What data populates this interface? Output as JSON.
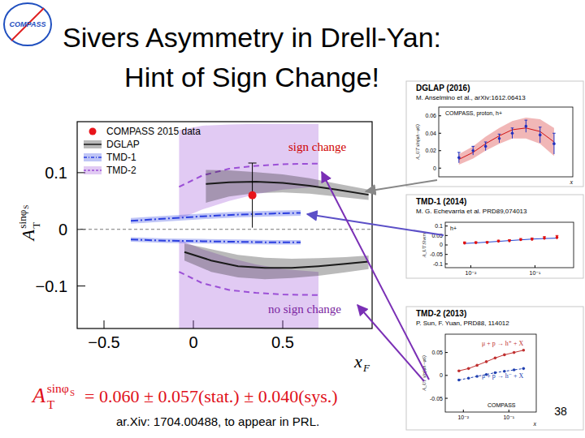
{
  "slide": {
    "logo": "COMPASS",
    "title": [
      "Sivers Asymmetry in Drell-Yan:",
      "Hint of Sign Change!"
    ],
    "result": {
      "lhs": [
        "A",
        "T",
        "sinφ",
        "S"
      ],
      "rhs": "= 0.060 ± 0.057(stat.) ± 0.040(sys.)"
    },
    "footnote": "ar.Xiv: 1704.00488, to appear in PRL.",
    "page": "38"
  },
  "chart_data": [
    {
      "type": "line",
      "xlabel": [
        "x",
        "F"
      ],
      "ylabel": [
        "A",
        "T",
        "sinφ",
        "S"
      ],
      "xlim": [
        -0.65,
        1.0
      ],
      "ylim": [
        -0.175,
        0.19
      ],
      "xticks": [
        {
          "value": -0.5,
          "label": "−0.5"
        },
        0,
        0.5
      ],
      "yticks": [
        {
          "value": -0.1,
          "label": "−0.1"
        },
        0,
        0.1
      ],
      "reference_y": 0,
      "legend": "upper left",
      "annotations": [
        {
          "text": "sign change",
          "color": "#d00000"
        },
        {
          "text": "no sign change",
          "color": "#7a1fa0"
        }
      ],
      "series": [
        {
          "name": "COMPASS 2015 data",
          "type": "scatter",
          "marker": "circle",
          "color": "#e8141b",
          "x": [
            0.33
          ],
          "values": [
            0.06
          ],
          "error": [
            0.057
          ]
        },
        {
          "name": "DGLAP",
          "type": "band",
          "color": "#1a1a1a",
          "line_style": "solid",
          "x": [
            0.07,
            0.2,
            0.35,
            0.5,
            0.65,
            0.8,
            0.98
          ],
          "values": [
            0.08,
            0.083,
            0.084,
            0.082,
            0.077,
            0.07,
            0.061
          ],
          "upper": [
            0.105,
            0.104,
            0.101,
            0.097,
            0.09,
            0.081,
            0.07
          ],
          "lower": [
            0.047,
            0.058,
            0.064,
            0.065,
            0.063,
            0.058,
            0.052
          ]
        },
        {
          "type": "band",
          "color": "#1a1a1a",
          "line_style": "solid",
          "x": [
            -0.05,
            0.1,
            0.25,
            0.4,
            0.55,
            0.7,
            0.85,
            0.98
          ],
          "values": [
            -0.04,
            -0.055,
            -0.065,
            -0.068,
            -0.068,
            -0.065,
            -0.061,
            -0.057
          ],
          "upper": [
            -0.025,
            -0.035,
            -0.045,
            -0.05,
            -0.052,
            -0.051,
            -0.049,
            -0.046
          ],
          "lower": [
            -0.055,
            -0.075,
            -0.085,
            -0.088,
            -0.086,
            -0.082,
            -0.076,
            -0.07
          ]
        },
        {
          "name": "TMD-1",
          "type": "band",
          "color": "#2b3fe0",
          "line_style": "dashdot",
          "x": [
            -0.35,
            -0.15,
            0.05,
            0.25,
            0.45,
            0.6
          ],
          "values": [
            0.015,
            0.019,
            0.023,
            0.026,
            0.028,
            0.029
          ],
          "upper": [
            0.02,
            0.024,
            0.028,
            0.031,
            0.033,
            0.034
          ],
          "lower": [
            0.01,
            0.014,
            0.018,
            0.021,
            0.023,
            0.024
          ]
        },
        {
          "type": "band",
          "color": "#2b3fe0",
          "line_style": "dashdot",
          "x": [
            -0.35,
            -0.15,
            0.05,
            0.25,
            0.45,
            0.6
          ],
          "values": [
            -0.018,
            -0.02,
            -0.021,
            -0.022,
            -0.023,
            -0.023
          ],
          "upper": [
            -0.014,
            -0.016,
            -0.017,
            -0.018,
            -0.019,
            -0.019
          ],
          "lower": [
            -0.022,
            -0.024,
            -0.025,
            -0.026,
            -0.027,
            -0.027
          ]
        },
        {
          "name": "TMD-2",
          "type": "band",
          "color": "#9b4fd6",
          "line_style": "dashed",
          "x": [
            -0.08,
            0.05,
            0.2,
            0.35,
            0.5,
            0.7
          ],
          "values": [
            0.075,
            0.095,
            0.107,
            0.112,
            0.115,
            0.116
          ],
          "upper": [
            0.175,
            0.183,
            0.185,
            0.186,
            0.186,
            0.186
          ],
          "lower": [
            0.018,
            0.035,
            0.05,
            0.062,
            0.07,
            0.075
          ]
        },
        {
          "type": "band",
          "color": "#9b4fd6",
          "line_style": "dashed",
          "x": [
            -0.08,
            0.05,
            0.2,
            0.35,
            0.5,
            0.7
          ],
          "values": [
            -0.075,
            -0.095,
            -0.107,
            -0.112,
            -0.115,
            -0.116
          ],
          "upper": [
            -0.018,
            -0.035,
            -0.05,
            -0.062,
            -0.07,
            -0.075
          ],
          "lower": [
            -0.175,
            -0.183,
            -0.185,
            -0.186,
            -0.186,
            -0.186
          ]
        }
      ]
    },
    {
      "type": "line",
      "title": "DGLAP (2016)",
      "subtitle": "M. Anselmino et al., arXiv:1612.06413",
      "xlabel": "x",
      "ylabel": "A_UT sin(φh−φS)",
      "log": "x",
      "xlim": [
        0.004,
        0.4
      ],
      "ylim": [
        -0.01,
        0.07
      ],
      "yticks": [
        0,
        0.02,
        0.04,
        0.06
      ],
      "tick_labels": "y",
      "annotations": [
        {
          "text": "COMPASS, proton, h+"
        }
      ],
      "series": [
        {
          "type": "band",
          "color": "#d01010",
          "line_style": "solid",
          "x": [
            0.008,
            0.013,
            0.02,
            0.032,
            0.05,
            0.08,
            0.13,
            0.21
          ],
          "values": [
            0.01,
            0.018,
            0.028,
            0.037,
            0.044,
            0.046,
            0.042,
            0.03
          ],
          "upper": [
            0.016,
            0.025,
            0.036,
            0.046,
            0.054,
            0.058,
            0.056,
            0.046
          ],
          "lower": [
            0.004,
            0.011,
            0.02,
            0.028,
            0.034,
            0.034,
            0.028,
            0.014
          ]
        },
        {
          "type": "scatter",
          "marker": "circle",
          "color": "#2030c0",
          "x": [
            0.008,
            0.013,
            0.02,
            0.032,
            0.05,
            0.08,
            0.13,
            0.21
          ],
          "values": [
            0.012,
            0.02,
            0.025,
            0.034,
            0.04,
            0.048,
            0.038,
            0.028
          ],
          "error": [
            0.006,
            0.005,
            0.005,
            0.005,
            0.006,
            0.007,
            0.009,
            0.012
          ]
        }
      ]
    },
    {
      "type": "line",
      "title": "TMD-1 (2014)",
      "subtitle": "M. G. Echevarria et al. PRD89,074013",
      "ylabel": "A_UT Sivers",
      "log": "x",
      "xlim": [
        0.004,
        0.4
      ],
      "ylim": [
        -0.12,
        0.12
      ],
      "xticks": [
        {
          "value": 0.01,
          "label": "10⁻²"
        },
        {
          "value": 0.1,
          "label": "10⁻¹"
        }
      ],
      "yticks": [
        -0.1,
        -0.05,
        0,
        0.05,
        0.1
      ],
      "annotations": [
        {
          "text": "h+"
        }
      ],
      "series": [
        {
          "type": "line",
          "color": "#2040d0",
          "line_style": "solid",
          "x": [
            0.008,
            0.012,
            0.018,
            0.027,
            0.04,
            0.06,
            0.09,
            0.14,
            0.22
          ],
          "values": [
            0.008,
            0.011,
            0.015,
            0.019,
            0.023,
            0.027,
            0.031,
            0.034,
            0.036
          ]
        },
        {
          "type": "scatter",
          "marker": "circle",
          "color": "#e01010",
          "x": [
            0.008,
            0.012,
            0.018,
            0.027,
            0.04,
            0.06,
            0.09,
            0.14,
            0.22
          ],
          "values": [
            0.01,
            0.012,
            0.013,
            0.02,
            0.022,
            0.028,
            0.03,
            0.036,
            0.04
          ],
          "error": [
            0.006,
            0.005,
            0.005,
            0.005,
            0.006,
            0.006,
            0.007,
            0.008,
            0.01
          ]
        }
      ]
    },
    {
      "type": "line",
      "title": "TMD-2 (2013)",
      "subtitle": "P. Sun, F. Yuan, PRD88, 114012",
      "xlabel": "x",
      "ylabel": "A_UT sin(φh−φS)",
      "log": "x",
      "xlim": [
        0.004,
        0.4
      ],
      "ylim": [
        -0.08,
        0.09
      ],
      "xticks": [
        {
          "value": 0.01,
          "label": "10⁻²"
        },
        {
          "value": 0.1,
          "label": "10⁻¹"
        }
      ],
      "yticks": [
        -0.05,
        0,
        0.05
      ],
      "annotations": [
        {
          "text": "COMPASS"
        }
      ],
      "series": [
        {
          "name": "μ + p → h⁺ + X",
          "type": "line",
          "marker": "circle",
          "color": "#c03030",
          "line_style": "solid",
          "x": [
            0.008,
            0.013,
            0.02,
            0.032,
            0.05,
            0.08,
            0.13,
            0.21
          ],
          "values": [
            0.01,
            0.015,
            0.022,
            0.03,
            0.038,
            0.045,
            0.05,
            0.055
          ]
        },
        {
          "name": "μ + p → h⁻ + X",
          "type": "line",
          "marker": "circle",
          "color": "#2040b0",
          "line_style": "dashed",
          "x": [
            0.008,
            0.013,
            0.02,
            0.032,
            0.05,
            0.08,
            0.13,
            0.21
          ],
          "values": [
            -0.01,
            -0.006,
            -0.002,
            0.002,
            0.006,
            0.009,
            0.012,
            0.015
          ]
        }
      ]
    }
  ]
}
